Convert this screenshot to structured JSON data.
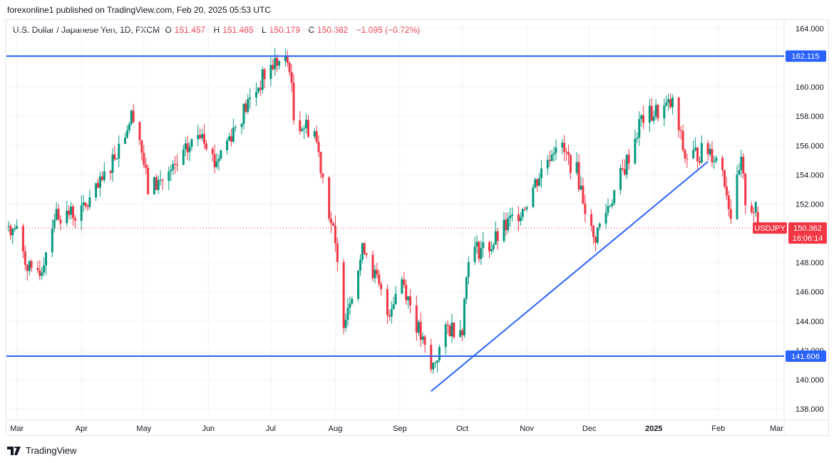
{
  "header": {
    "published": "forexonline1 published on TradingView.com, Feb 20, 2025 05:53 UTC"
  },
  "legend": {
    "symbol": "U.S. Dollar / Japanese Yen, 1D, FXCM",
    "o_label": "O",
    "o": "151.457",
    "h_label": "H",
    "h": "151.465",
    "l_label": "L",
    "l": "150.179",
    "c_label": "C",
    "c": "150.362",
    "change": "−1.095 (−0.72%)"
  },
  "footer": {
    "brand": "TradingView"
  },
  "colors": {
    "up": "#089981",
    "down": "#f23645",
    "line": "#2962ff"
  },
  "chart_data": {
    "type": "candlestick",
    "symbol": "USDJPY",
    "timeframe": "1D",
    "last_price": "150.362",
    "countdown": "16:06:14",
    "symbol_tag": "USDJPY",
    "ylim": [
      137.5,
      165
    ],
    "y_ticks": [
      "164.000",
      "160.000",
      "158.000",
      "156.000",
      "154.000",
      "152.000",
      "148.000",
      "146.000",
      "144.000",
      "142.000",
      "140.000",
      "138.000"
    ],
    "x_ticks": [
      {
        "label": "Mar",
        "date": "2024-03-01"
      },
      {
        "label": "Apr",
        "date": "2024-04-01"
      },
      {
        "label": "May",
        "date": "2024-05-01"
      },
      {
        "label": "Jun",
        "date": "2024-06-01"
      },
      {
        "label": "Jul",
        "date": "2024-07-01"
      },
      {
        "label": "Aug",
        "date": "2024-08-01"
      },
      {
        "label": "Sep",
        "date": "2024-09-01"
      },
      {
        "label": "Oct",
        "date": "2024-10-01"
      },
      {
        "label": "Nov",
        "date": "2024-11-01"
      },
      {
        "label": "Dec",
        "date": "2024-12-01"
      },
      {
        "label": "2025",
        "date": "2025-01-01"
      },
      {
        "label": "Feb",
        "date": "2025-02-01"
      },
      {
        "label": "Mar",
        "date": "2025-03-01"
      }
    ],
    "horizontal_lines": [
      {
        "price": 162.115,
        "label": "162.115"
      },
      {
        "price": 141.606,
        "label": "141.606"
      }
    ],
    "trend_line": {
      "from": {
        "date": "2024-09-16",
        "price": 139.2
      },
      "to": {
        "date": "2025-01-27",
        "price": 154.9
      }
    },
    "close_path": [
      [
        "2024-02-26",
        150.5
      ],
      [
        "2024-03-01",
        150.1
      ],
      [
        "2024-03-08",
        147.0
      ],
      [
        "2024-03-13",
        147.7
      ],
      [
        "2024-03-19",
        151.3
      ],
      [
        "2024-04-01",
        151.4
      ],
      [
        "2024-04-10",
        153.2
      ],
      [
        "2024-04-26",
        158.3
      ],
      [
        "2024-04-29",
        156.5
      ],
      [
        "2024-05-03",
        153.0
      ],
      [
        "2024-05-15",
        154.2
      ],
      [
        "2024-05-29",
        157.2
      ],
      [
        "2024-06-04",
        154.8
      ],
      [
        "2024-06-14",
        157.4
      ],
      [
        "2024-06-28",
        160.8
      ],
      [
        "2024-07-03",
        161.7
      ],
      [
        "2024-07-10",
        161.6
      ],
      [
        "2024-07-12",
        157.8
      ],
      [
        "2024-07-22",
        157.0
      ],
      [
        "2024-07-31",
        150.0
      ],
      [
        "2024-08-05",
        144.2
      ],
      [
        "2024-08-15",
        149.2
      ],
      [
        "2024-08-26",
        144.5
      ],
      [
        "2024-09-02",
        147.0
      ],
      [
        "2024-09-16",
        140.6
      ],
      [
        "2024-09-24",
        143.5
      ],
      [
        "2024-10-01",
        143.7
      ],
      [
        "2024-10-04",
        148.7
      ],
      [
        "2024-10-15",
        149.2
      ],
      [
        "2024-10-31",
        152.0
      ],
      [
        "2024-11-15",
        156.3
      ],
      [
        "2024-11-25",
        154.2
      ],
      [
        "2024-12-03",
        149.5
      ],
      [
        "2024-12-18",
        154.5
      ],
      [
        "2024-12-26",
        157.8
      ],
      [
        "2025-01-10",
        158.8
      ],
      [
        "2025-01-16",
        155.2
      ],
      [
        "2025-01-28",
        155.7
      ],
      [
        "2025-02-03",
        154.5
      ],
      [
        "2025-02-07",
        151.3
      ],
      [
        "2025-02-12",
        154.7
      ],
      [
        "2025-02-14",
        152.3
      ],
      [
        "2025-02-19",
        151.5
      ],
      [
        "2025-02-20",
        150.362
      ]
    ]
  }
}
